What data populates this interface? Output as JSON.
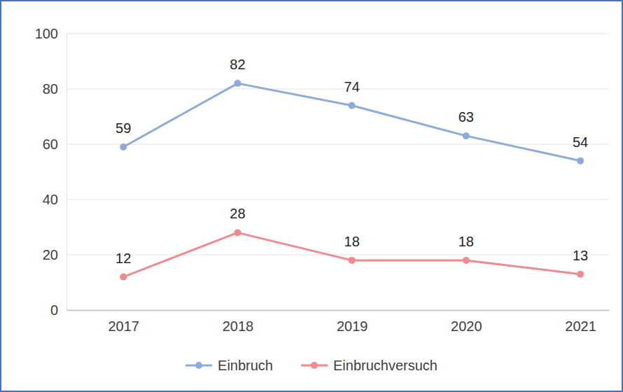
{
  "chart_data": {
    "type": "line",
    "categories": [
      "2017",
      "2018",
      "2019",
      "2020",
      "2021"
    ],
    "series": [
      {
        "name": "Einbruch",
        "color": "#8eaadb",
        "values": [
          59,
          82,
          74,
          63,
          54
        ]
      },
      {
        "name": "Einbruchversuch",
        "color": "#f08a8e",
        "values": [
          12,
          28,
          18,
          18,
          13
        ]
      }
    ],
    "ylim": [
      0,
      100
    ],
    "yticks": [
      0,
      20,
      40,
      60,
      80,
      100
    ],
    "grid": true,
    "data_labels": true,
    "legend": "bottom",
    "marker": "circle"
  }
}
